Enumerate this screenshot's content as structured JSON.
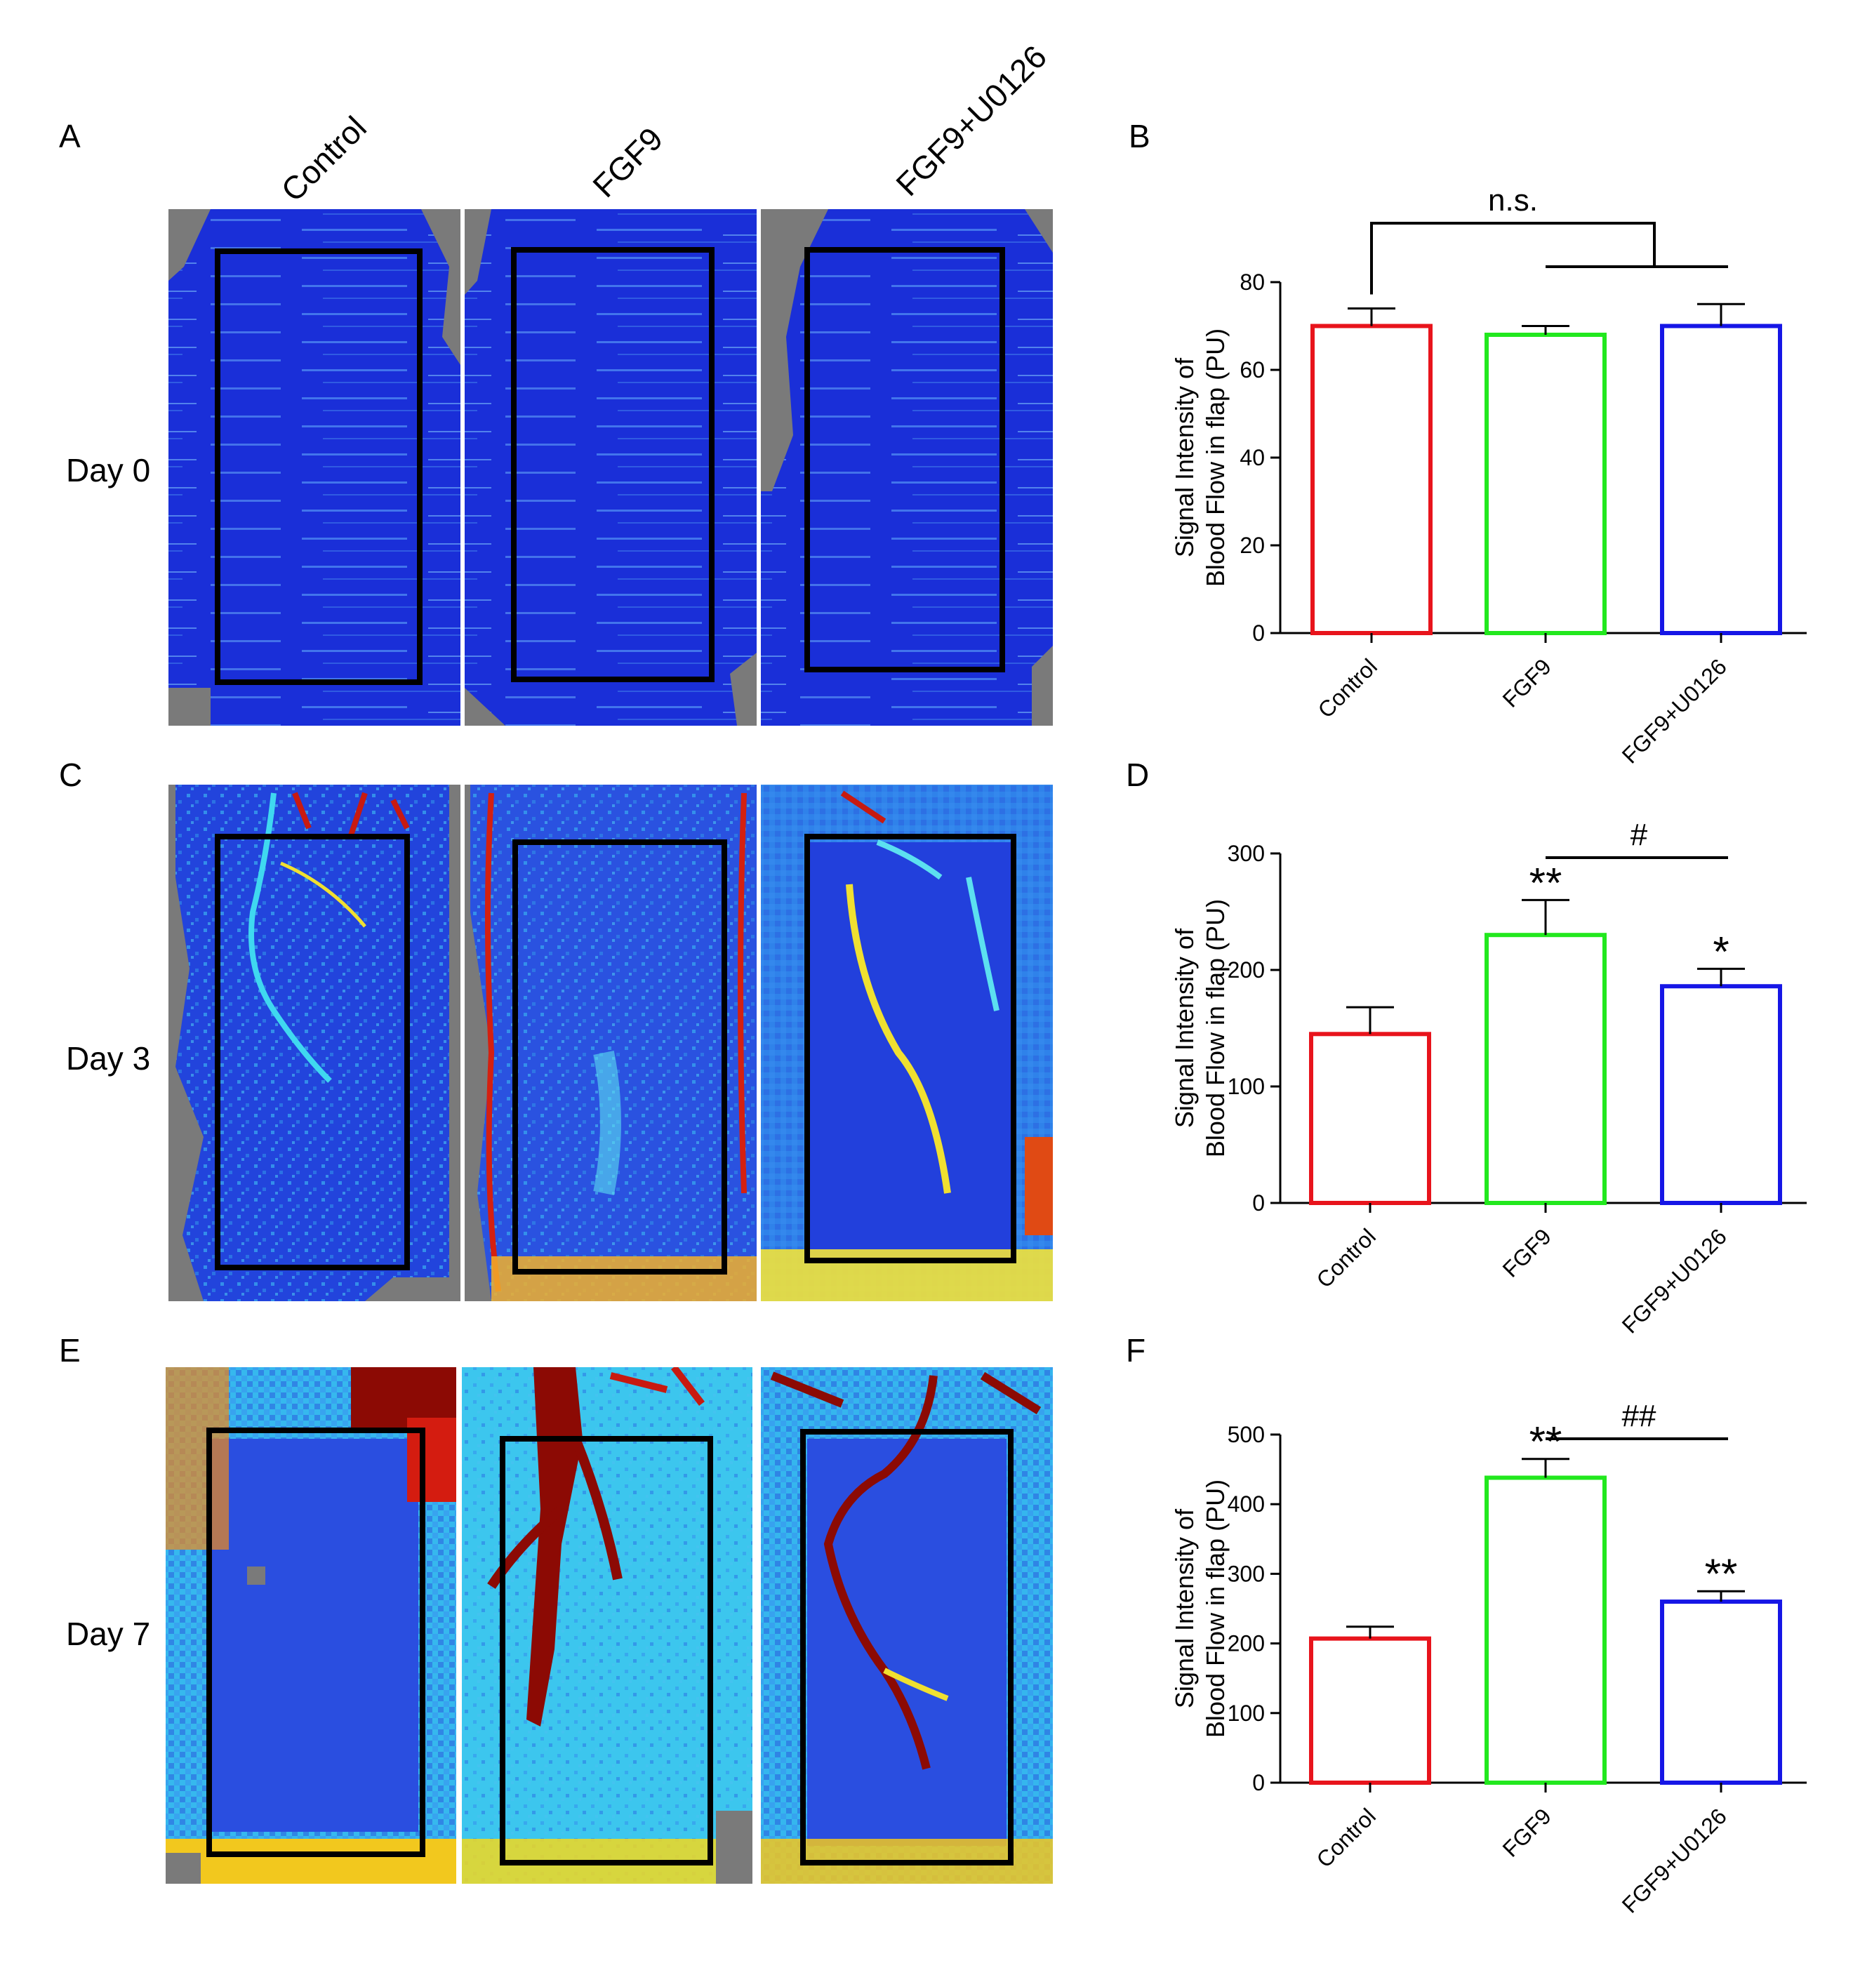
{
  "figure": {
    "panel_letters": [
      "A",
      "B",
      "C",
      "D",
      "E",
      "F"
    ],
    "column_labels": [
      "Control",
      "FGF9",
      "FGF9+U0126"
    ],
    "row_labels": [
      "Day 0",
      "Day 3",
      "Day 7"
    ]
  },
  "colors": {
    "Control": "#e8141c",
    "FGF9": "#22e81e",
    "FGF9+U0126": "#1616e6",
    "gray": "#7a7a7a",
    "deep_blue": "#1022d0",
    "mid_blue": "#2e6ee6",
    "cyan": "#35d2f0",
    "yellow": "#f2e62a",
    "orange": "#f08a1a",
    "red": "#d41c10",
    "dark_red": "#8c0a04"
  },
  "chart_data": [
    {
      "type": "bar",
      "panel": "B",
      "categories": [
        "Control",
        "FGF9",
        "FGF9+U0126"
      ],
      "values": [
        70,
        68,
        70
      ],
      "errors": [
        4,
        2,
        5
      ],
      "ylabel": "Signal Intensity of Blood Flow in flap (PU)",
      "ylabel_lines": [
        "Signal Intensity of",
        "Blood Flow in flap (PU)"
      ],
      "ylim": [
        0,
        80
      ],
      "yticks": [
        0,
        20,
        40,
        60,
        80
      ],
      "bar_marks": [
        "",
        "",
        ""
      ],
      "comparison_label": "n.s."
    },
    {
      "type": "bar",
      "panel": "D",
      "categories": [
        "Control",
        "FGF9",
        "FGF9+U0126"
      ],
      "values": [
        145,
        230,
        186
      ],
      "errors": [
        23,
        30,
        15
      ],
      "ylabel": "Signal Intensity of Blood Flow in flap (PU)",
      "ylabel_lines": [
        "Signal Intensity of",
        "Blood Flow in flap (PU)"
      ],
      "ylim": [
        0,
        300
      ],
      "yticks": [
        0,
        100,
        200,
        300
      ],
      "bar_marks": [
        "",
        "**",
        "*"
      ],
      "comparison_label": "#"
    },
    {
      "type": "bar",
      "panel": "F",
      "categories": [
        "Control",
        "FGF9",
        "FGF9+U0126"
      ],
      "values": [
        207,
        438,
        260
      ],
      "errors": [
        17,
        27,
        15
      ],
      "ylabel": "Signal Intensity of Blood Flow in flap (PU)",
      "ylabel_lines": [
        "Signal Intensity of",
        "Blood Flow in flap (PU)"
      ],
      "ylim": [
        0,
        500
      ],
      "yticks": [
        0,
        100,
        200,
        300,
        400,
        500
      ],
      "bar_marks": [
        "",
        "**",
        "**"
      ],
      "comparison_label": "##"
    }
  ]
}
